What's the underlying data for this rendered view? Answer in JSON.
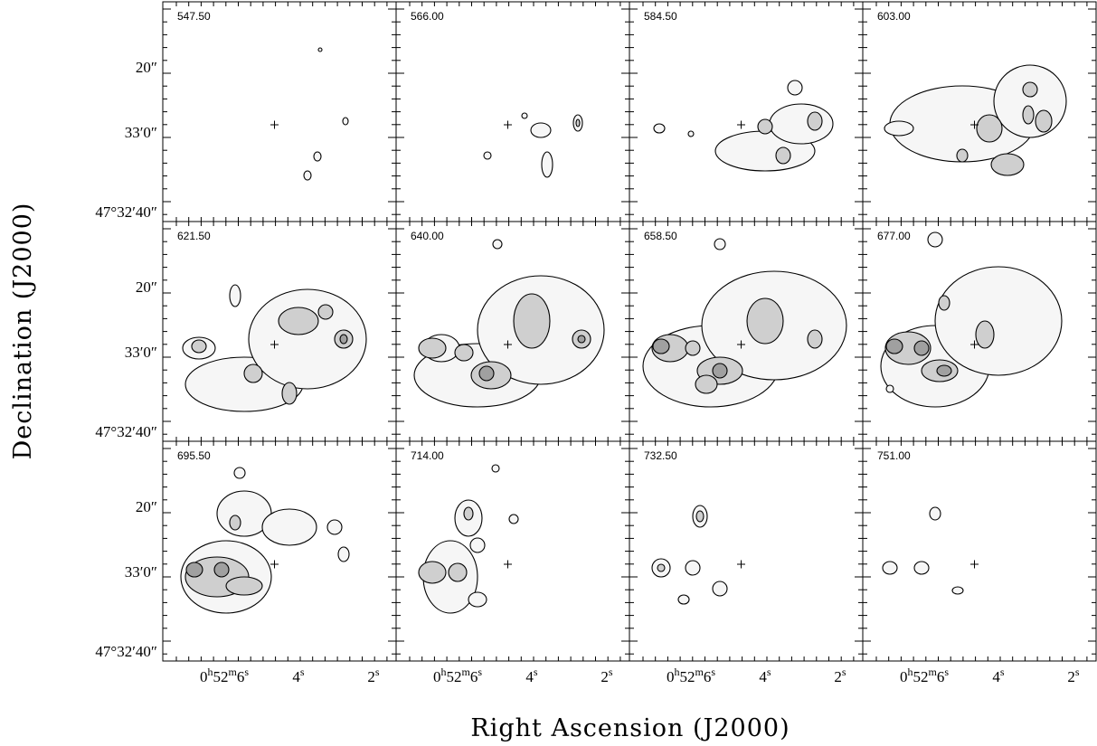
{
  "axes": {
    "xlabel": "Right Ascension (J2000)",
    "ylabel": "Declination (J2000)",
    "yticks": [
      "20″",
      "33′0″",
      "47°32′40″"
    ],
    "xticks": [
      [
        "0",
        "h",
        "52",
        "m",
        "6",
        "s"
      ],
      [
        "4",
        "s"
      ],
      [
        "2",
        "s"
      ]
    ]
  },
  "panels": [
    {
      "label": "547.50"
    },
    {
      "label": "566.00"
    },
    {
      "label": "584.50"
    },
    {
      "label": "603.00"
    },
    {
      "label": "621.50"
    },
    {
      "label": "640.00"
    },
    {
      "label": "658.50"
    },
    {
      "label": "677.00"
    },
    {
      "label": "695.50"
    },
    {
      "label": "714.00"
    },
    {
      "label": "732.50"
    },
    {
      "label": "751.00"
    }
  ]
}
